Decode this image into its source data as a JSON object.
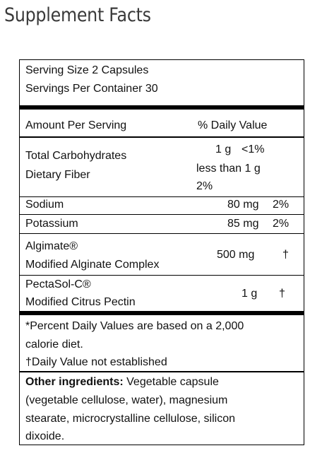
{
  "heading": "Supplement Facts",
  "serving": {
    "size": "Serving Size 2 Capsules",
    "per_container": "Servings Per Container 30"
  },
  "header": {
    "amount": "Amount Per Serving",
    "dv": "% Daily Value"
  },
  "carbs": {
    "label1": "Total Carbohydrates",
    "label2": "Dietary Fiber",
    "amount": "1 g",
    "dv": "<1%",
    "fiber_amount": "less than 1 g",
    "fiber_dv": "2%"
  },
  "sodium": {
    "label": "Sodium",
    "amount": "80 mg",
    "dv": "2%"
  },
  "potassium": {
    "label": "Potassium",
    "amount": "85 mg",
    "dv": "2%"
  },
  "algimate": {
    "label1": "Algimate®",
    "label2": "Modified Alginate Complex",
    "amount": "500 mg",
    "dv": "†"
  },
  "pectasol": {
    "label1": "PectaSol-C®",
    "label2": "Modified Citrus Pectin",
    "amount": "1 g",
    "dv": "†"
  },
  "footnotes": {
    "line1": "*Percent Daily Values are based on a 2,000",
    "line2": "calorie diet.",
    "line3": "†Daily Value not established"
  },
  "ingredients": {
    "label": "Other ingredients:",
    "line1": " Vegetable capsule",
    "line2": "(vegetable cellulose, water), magnesium",
    "line3": "stearate, microcrystalline cellulose, silicon",
    "line4": "dixoide."
  }
}
